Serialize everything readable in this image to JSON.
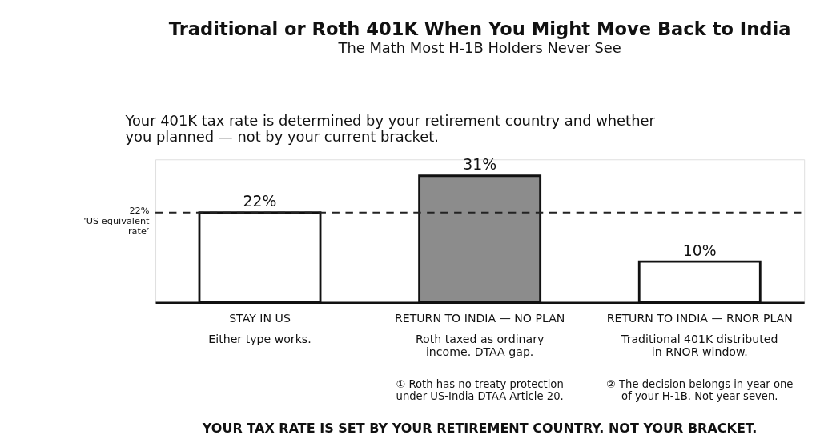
{
  "chart_data": {
    "type": "bar",
    "title": "Traditional or Roth 401K When You Might Move Back to India",
    "subtitle": "The Math Most H-1B Holders Never See",
    "categories": [
      "STAY IN US",
      "RETURN TO INDIA — NO PLAN",
      "RETURN TO INDIA — RNOR PLAN"
    ],
    "values": [
      22,
      31,
      10
    ],
    "colors": [
      "#ffffff",
      "#8c8c8c",
      "#ffffff"
    ],
    "value_labels": [
      "22%",
      "31%",
      "10%"
    ],
    "ylim": [
      0,
      35
    ],
    "tick_labels": "x",
    "ref_lines": [
      {
        "axis": "y",
        "value": 22,
        "label": "22%\n‘US equivalent\nrate’",
        "line_style": "dashed",
        "color": "#222222"
      }
    ],
    "annotations": [
      "Your 401K tax rate is determined by your retirement country and whether\nyou planned — not by your current bracket.",
      "Either type works.",
      "Roth taxed as ordinary\nincome.  DTAA gap.",
      "Traditional 401K distributed\nin RNOR window.",
      "① Roth has no treaty protection\n    under US-India DTAA Article 20.",
      "② The decision belongs in year one\n    of your H-1B.  Not year seven.",
      "YOUR TAX RATE IS SET BY YOUR RETIREMENT COUNTRY.  NOT YOUR BRACKET."
    ]
  }
}
